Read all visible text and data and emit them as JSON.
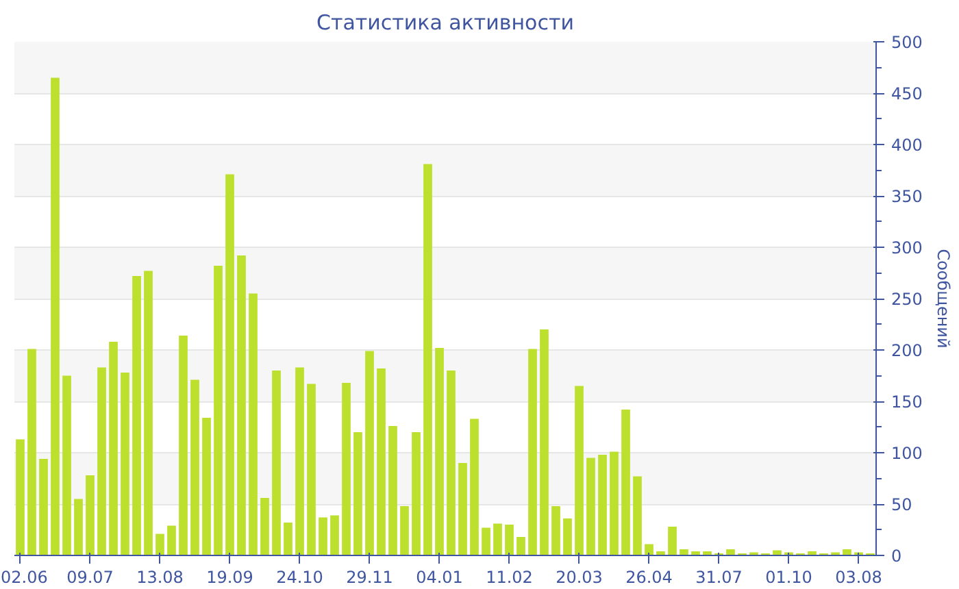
{
  "chart_data": {
    "type": "bar",
    "title": "Статистика активности",
    "ylabel": "Сообщений",
    "color": "#bde02f",
    "categories": [
      "02.06",
      null,
      null,
      null,
      null,
      null,
      "09.07",
      null,
      null,
      null,
      null,
      null,
      "13.08",
      null,
      null,
      null,
      null,
      null,
      "19.09",
      null,
      null,
      null,
      null,
      null,
      "24.10",
      null,
      null,
      null,
      null,
      null,
      "29.11",
      null,
      null,
      null,
      null,
      null,
      "04.01",
      null,
      null,
      null,
      null,
      null,
      "11.02",
      null,
      null,
      null,
      null,
      null,
      "20.03",
      null,
      null,
      null,
      null,
      null,
      "26.04",
      null,
      null,
      null,
      null,
      null,
      "31.07",
      null,
      null,
      null,
      null,
      null,
      "01.10",
      null,
      null,
      null,
      null,
      null,
      "03.08",
      null
    ],
    "values": [
      113,
      201,
      94,
      465,
      175,
      55,
      78,
      183,
      208,
      178,
      272,
      277,
      21,
      29,
      214,
      171,
      134,
      282,
      371,
      292,
      255,
      56,
      180,
      32,
      183,
      167,
      37,
      39,
      168,
      120,
      199,
      182,
      126,
      48,
      120,
      381,
      202,
      180,
      90,
      133,
      27,
      31,
      30,
      18,
      201,
      220,
      48,
      36,
      165,
      95,
      98,
      101,
      142,
      77,
      11,
      4,
      28,
      6,
      4,
      4,
      2,
      6,
      2,
      3,
      2,
      5,
      3,
      2,
      4,
      2,
      3,
      6,
      3,
      2
    ],
    "ylim": [
      0,
      500
    ],
    "yticks": [
      0,
      50,
      100,
      150,
      200,
      250,
      300,
      350,
      400,
      450,
      500
    ],
    "grid": "y"
  }
}
